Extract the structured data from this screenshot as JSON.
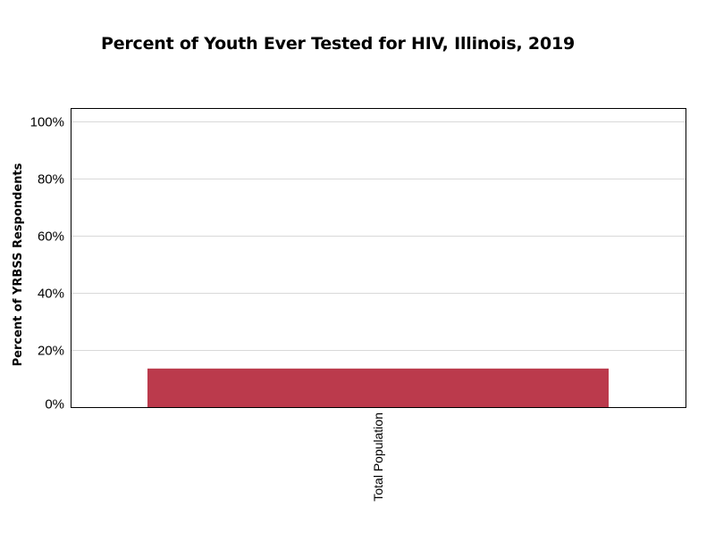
{
  "chart_data": {
    "type": "bar",
    "title": "Percent of Youth Ever Tested for HIV, Illinois, 2019",
    "xlabel": "",
    "ylabel": "Percent of YRBSS Respondents",
    "categories": [
      "Total Population"
    ],
    "values": [
      13.5
    ],
    "ylim": [
      0,
      100
    ],
    "yticks": [
      0,
      20,
      40,
      60,
      80,
      100
    ],
    "ytick_labels": [
      "0%",
      "20%",
      "40%",
      "60%",
      "80%",
      "100%"
    ],
    "grid": true,
    "legend": "none",
    "colors": {
      "bar": "#bb3a4c",
      "grid": "#d9d9d9",
      "axis": "#000000"
    }
  }
}
